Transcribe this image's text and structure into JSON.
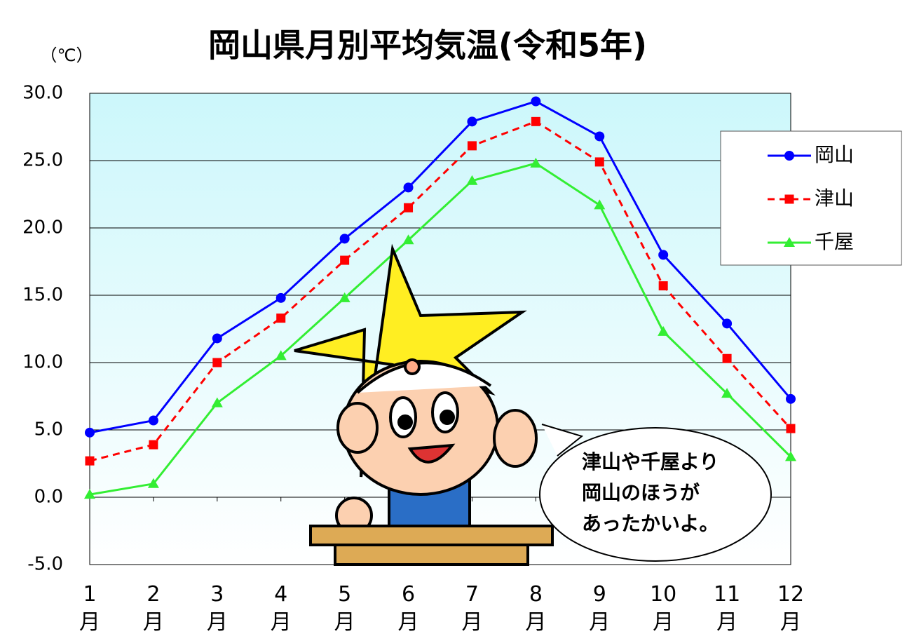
{
  "chart_data": {
    "type": "line",
    "title": "岡山県月別平均気温(令和5年)",
    "y_unit": "（℃）",
    "categories": [
      "1月",
      "2月",
      "3月",
      "4月",
      "5月",
      "6月",
      "7月",
      "8月",
      "9月",
      "10月",
      "11月",
      "12月"
    ],
    "series": [
      {
        "name": "岡山",
        "color": "#0000ff",
        "marker": "circle",
        "dash": false,
        "values": [
          4.8,
          5.7,
          11.8,
          14.8,
          19.2,
          23.0,
          27.9,
          29.4,
          26.8,
          18.0,
          12.9,
          7.3
        ]
      },
      {
        "name": "津山",
        "color": "#ff0000",
        "marker": "square",
        "dash": true,
        "values": [
          2.7,
          3.9,
          10.0,
          13.3,
          17.6,
          21.5,
          26.1,
          27.9,
          24.9,
          15.7,
          10.3,
          5.1
        ]
      },
      {
        "name": "千屋",
        "color": "#33ee33",
        "marker": "triangle",
        "dash": false,
        "values": [
          0.2,
          1.0,
          7.0,
          10.5,
          14.8,
          19.1,
          23.5,
          24.8,
          21.7,
          12.3,
          7.7,
          3.0
        ]
      }
    ],
    "ylim": [
      -5,
      30
    ],
    "yticks": [
      {
        "value": -5,
        "label": "-5.0"
      },
      {
        "value": 0,
        "label": "0.0"
      },
      {
        "value": 5,
        "label": "5.0"
      },
      {
        "value": 10,
        "label": "10.0"
      },
      {
        "value": 15,
        "label": "15.0"
      },
      {
        "value": 20,
        "label": "20.0"
      },
      {
        "value": 25,
        "label": "25.0"
      },
      {
        "value": 30,
        "label": "30.0"
      }
    ],
    "grid": true,
    "legend": "upper right",
    "annotation": [
      "津山や千屋より",
      "岡山のほうが",
      "あったかいよ。"
    ]
  }
}
